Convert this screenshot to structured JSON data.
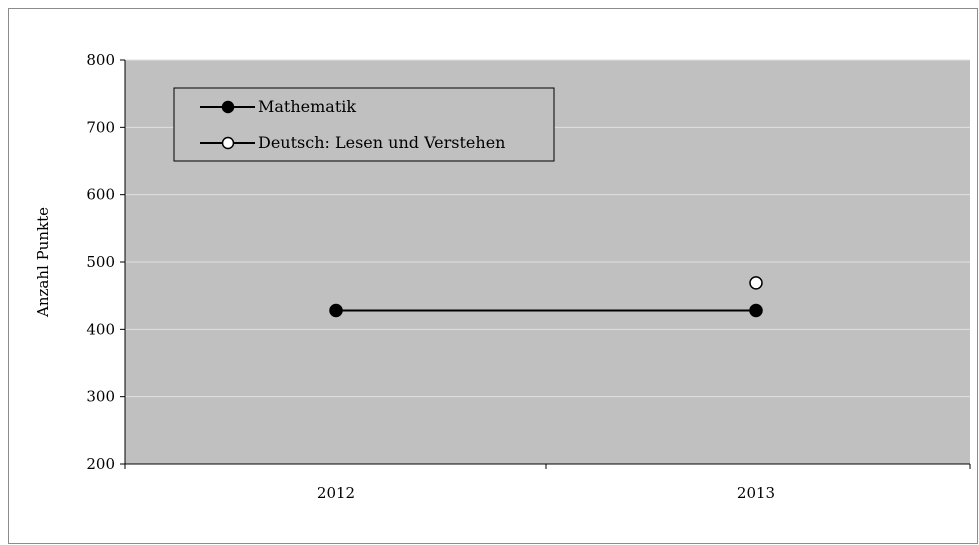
{
  "chart_data": {
    "type": "line",
    "title": "",
    "xlabel": "",
    "ylabel": "Anzahl Punkte",
    "ylim": [
      200,
      800
    ],
    "yticks": [
      200,
      300,
      400,
      500,
      600,
      700,
      800
    ],
    "categories": [
      "2012",
      "2013"
    ],
    "grid": true,
    "legend_position": "top-left",
    "colors": {
      "plot_background": "#c0c0c0",
      "gridline": "#e0e0e0",
      "line": "#000000"
    },
    "series": [
      {
        "name": "Mathematik",
        "values": [
          428,
          428
        ],
        "marker": "filled-circle"
      },
      {
        "name": "Deutsch: Lesen und Verstehen",
        "values": [
          null,
          469
        ],
        "marker": "open-circle"
      }
    ]
  }
}
